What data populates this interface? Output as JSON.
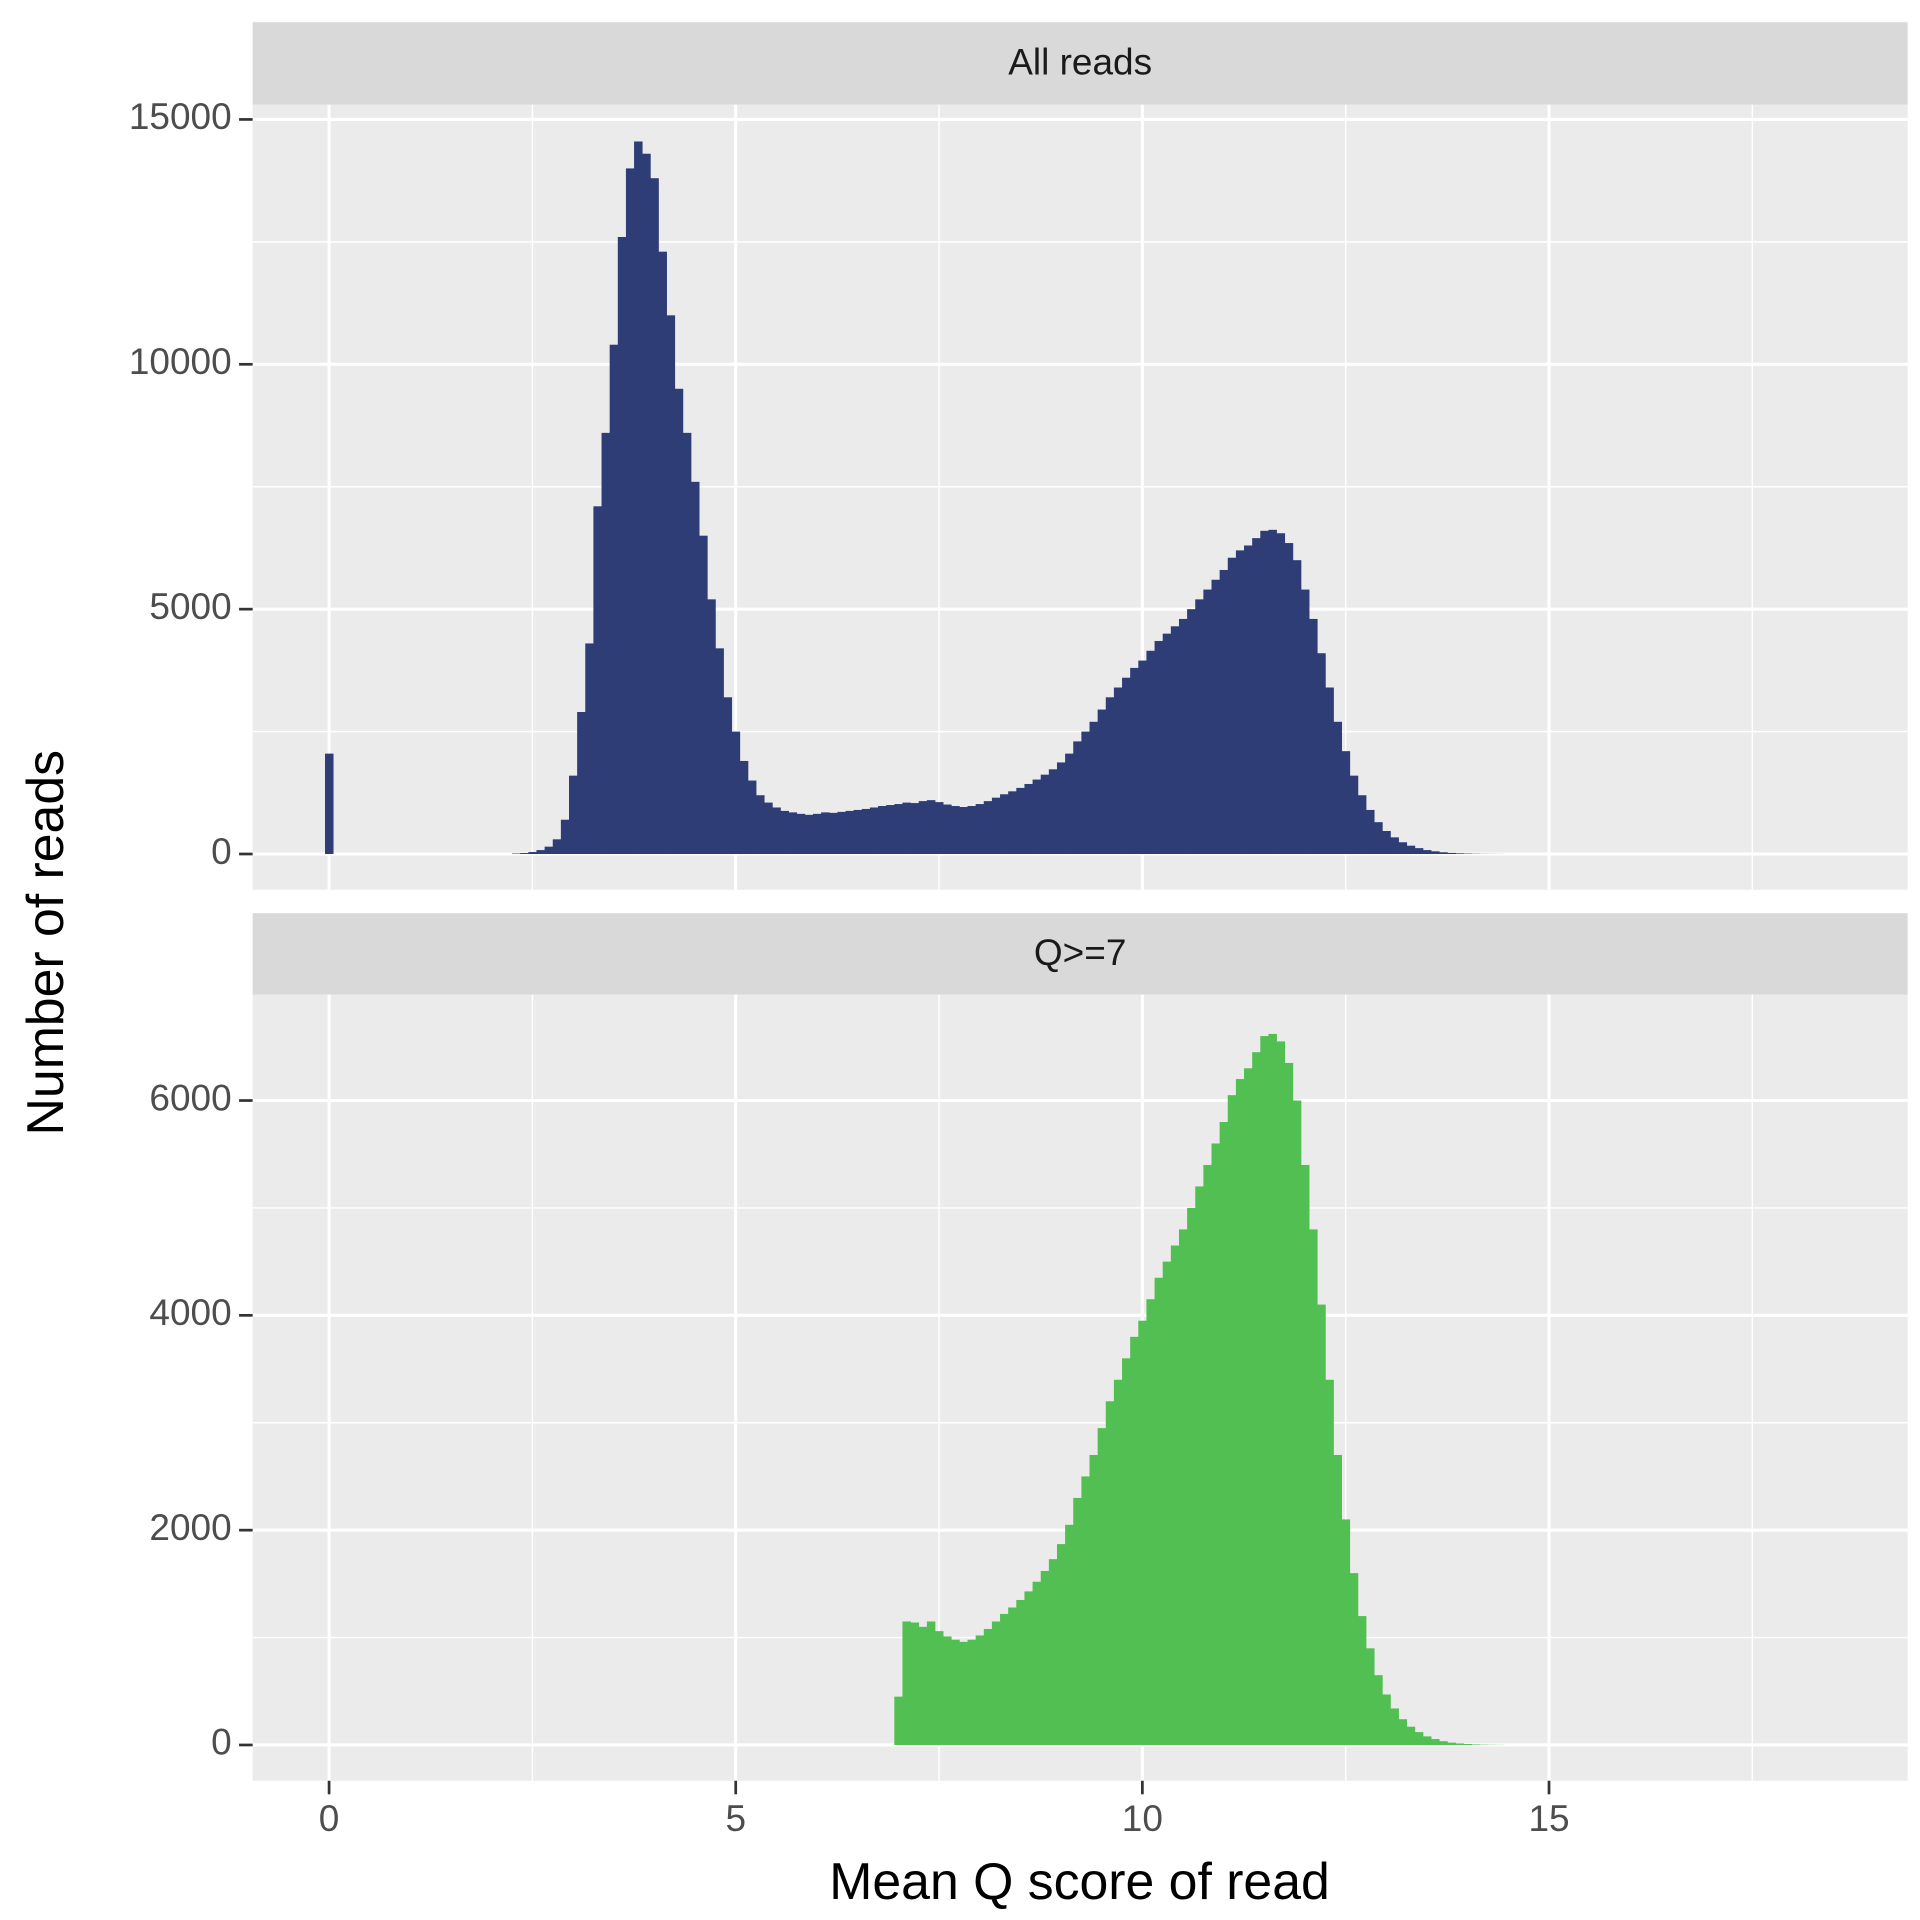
{
  "x_axis_label": "Mean Q score of read",
  "y_axis_label": "Number of reads",
  "chart_data": [
    {
      "type": "histogram",
      "title": "All reads",
      "color": "#2e3d76",
      "grid": true,
      "xlim": [
        -0.94,
        19.41
      ],
      "xticks": [
        0,
        5,
        10,
        15
      ],
      "xminor": [
        2.5,
        7.5,
        12.5,
        17.5
      ],
      "ylim": [
        -730,
        15300
      ],
      "yticks": [
        0,
        5000,
        10000,
        15000
      ],
      "yminor": [
        2500,
        7500,
        12500
      ],
      "bins": [
        -0.05,
        0.05,
        0.15,
        0.25,
        0.35,
        0.45,
        0.55,
        0.65,
        0.75,
        0.85,
        0.95,
        1.05,
        1.15,
        1.25,
        1.35,
        1.45,
        1.55,
        1.65,
        1.75,
        1.85,
        1.95,
        2.05,
        2.15,
        2.25,
        2.35,
        2.45,
        2.55,
        2.65,
        2.75,
        2.85,
        2.95,
        3.05,
        3.15,
        3.25,
        3.35,
        3.45,
        3.55,
        3.65,
        3.75,
        3.85,
        3.95,
        4.05,
        4.15,
        4.25,
        4.35,
        4.45,
        4.55,
        4.65,
        4.75,
        4.85,
        4.95,
        5.05,
        5.15,
        5.25,
        5.35,
        5.45,
        5.55,
        5.65,
        5.75,
        5.85,
        5.95,
        6.05,
        6.15,
        6.25,
        6.35,
        6.45,
        6.55,
        6.65,
        6.75,
        6.85,
        6.95,
        7.05,
        7.15,
        7.25,
        7.35,
        7.45,
        7.55,
        7.65,
        7.75,
        7.85,
        7.95,
        8.05,
        8.15,
        8.25,
        8.35,
        8.45,
        8.55,
        8.65,
        8.75,
        8.85,
        8.95,
        9.05,
        9.15,
        9.25,
        9.35,
        9.45,
        9.55,
        9.65,
        9.75,
        9.85,
        9.95,
        10.05,
        10.15,
        10.25,
        10.35,
        10.45,
        10.55,
        10.65,
        10.75,
        10.85,
        10.95,
        11.05,
        11.15,
        11.25,
        11.35,
        11.45,
        11.55,
        11.65,
        11.75,
        11.85,
        11.95,
        12.05,
        12.15,
        12.25,
        12.35,
        12.45,
        12.55,
        12.65,
        12.75,
        12.85,
        12.95,
        13.05,
        13.15,
        13.25,
        13.35,
        13.45,
        13.55,
        13.65,
        13.75,
        13.85,
        13.95,
        14.05,
        14.15,
        14.25,
        14.35,
        14.45
      ],
      "values": [
        2050,
        0,
        0,
        0,
        0,
        0,
        0,
        0,
        0,
        0,
        0,
        0,
        0,
        0,
        0,
        0,
        0,
        0,
        0,
        0,
        0,
        0,
        0,
        10,
        20,
        40,
        80,
        150,
        300,
        700,
        1600,
        2900,
        4300,
        7100,
        8600,
        10400,
        12600,
        14000,
        14550,
        14300,
        13800,
        12300,
        11000,
        9500,
        8600,
        7600,
        6500,
        5200,
        4200,
        3200,
        2500,
        1900,
        1500,
        1200,
        1050,
        950,
        880,
        850,
        820,
        800,
        820,
        850,
        840,
        860,
        880,
        900,
        920,
        950,
        980,
        1000,
        1020,
        1050,
        1040,
        1080,
        1100,
        1060,
        1010,
        980,
        960,
        980,
        1020,
        1080,
        1150,
        1220,
        1280,
        1350,
        1430,
        1520,
        1620,
        1730,
        1870,
        2050,
        2300,
        2500,
        2700,
        2950,
        3200,
        3400,
        3600,
        3800,
        3950,
        4150,
        4350,
        4500,
        4650,
        4800,
        5000,
        5200,
        5400,
        5600,
        5800,
        6050,
        6200,
        6300,
        6450,
        6600,
        6620,
        6550,
        6350,
        6000,
        5400,
        4800,
        4100,
        3400,
        2700,
        2100,
        1600,
        1200,
        900,
        650,
        470,
        340,
        240,
        170,
        120,
        80,
        55,
        35,
        22,
        14,
        9,
        5,
        3,
        2,
        1
      ]
    },
    {
      "type": "histogram",
      "title": "Q>=7",
      "color": "#52bf52",
      "grid": true,
      "xlim": [
        -0.94,
        19.41
      ],
      "xticks": [
        0,
        5,
        10,
        15
      ],
      "xminor": [
        2.5,
        7.5,
        12.5,
        17.5
      ],
      "ylim": [
        -333,
        6987
      ],
      "yticks": [
        0,
        2000,
        4000,
        6000
      ],
      "yminor": [
        1000,
        3000,
        5000
      ],
      "bins": [
        -0.05,
        0.05,
        0.15,
        0.25,
        0.35,
        0.45,
        0.55,
        0.65,
        0.75,
        0.85,
        0.95,
        1.05,
        1.15,
        1.25,
        1.35,
        1.45,
        1.55,
        1.65,
        1.75,
        1.85,
        1.95,
        2.05,
        2.15,
        2.25,
        2.35,
        2.45,
        2.55,
        2.65,
        2.75,
        2.85,
        2.95,
        3.05,
        3.15,
        3.25,
        3.35,
        3.45,
        3.55,
        3.65,
        3.75,
        3.85,
        3.95,
        4.05,
        4.15,
        4.25,
        4.35,
        4.45,
        4.55,
        4.65,
        4.75,
        4.85,
        4.95,
        5.05,
        5.15,
        5.25,
        5.35,
        5.45,
        5.55,
        5.65,
        5.75,
        5.85,
        5.95,
        6.05,
        6.15,
        6.25,
        6.35,
        6.45,
        6.55,
        6.65,
        6.75,
        6.85,
        6.95,
        7.05,
        7.15,
        7.25,
        7.35,
        7.45,
        7.55,
        7.65,
        7.75,
        7.85,
        7.95,
        8.05,
        8.15,
        8.25,
        8.35,
        8.45,
        8.55,
        8.65,
        8.75,
        8.85,
        8.95,
        9.05,
        9.15,
        9.25,
        9.35,
        9.45,
        9.55,
        9.65,
        9.75,
        9.85,
        9.95,
        10.05,
        10.15,
        10.25,
        10.35,
        10.45,
        10.55,
        10.65,
        10.75,
        10.85,
        10.95,
        11.05,
        11.15,
        11.25,
        11.35,
        11.45,
        11.55,
        11.65,
        11.75,
        11.85,
        11.95,
        12.05,
        12.15,
        12.25,
        12.35,
        12.45,
        12.55,
        12.65,
        12.75,
        12.85,
        12.95,
        13.05,
        13.15,
        13.25,
        13.35,
        13.45,
        13.55,
        13.65,
        13.75,
        13.85,
        13.95,
        14.05,
        14.15,
        14.25,
        14.35,
        14.45
      ],
      "values": [
        0,
        0,
        0,
        0,
        0,
        0,
        0,
        0,
        0,
        0,
        0,
        0,
        0,
        0,
        0,
        0,
        0,
        0,
        0,
        0,
        0,
        0,
        0,
        0,
        0,
        0,
        0,
        0,
        0,
        0,
        0,
        0,
        0,
        0,
        0,
        0,
        0,
        0,
        0,
        0,
        0,
        0,
        0,
        0,
        0,
        0,
        0,
        0,
        0,
        0,
        0,
        0,
        0,
        0,
        0,
        0,
        0,
        0,
        0,
        0,
        0,
        0,
        0,
        0,
        0,
        0,
        0,
        0,
        0,
        0,
        450,
        1150,
        1140,
        1100,
        1150,
        1060,
        1010,
        980,
        960,
        980,
        1020,
        1080,
        1150,
        1220,
        1280,
        1350,
        1430,
        1520,
        1620,
        1730,
        1870,
        2050,
        2300,
        2500,
        2700,
        2950,
        3200,
        3400,
        3600,
        3800,
        3950,
        4150,
        4350,
        4500,
        4650,
        4800,
        5000,
        5200,
        5400,
        5600,
        5800,
        6050,
        6200,
        6300,
        6450,
        6600,
        6620,
        6550,
        6350,
        6000,
        5400,
        4800,
        4100,
        3400,
        2700,
        2100,
        1600,
        1200,
        900,
        650,
        470,
        340,
        240,
        170,
        120,
        80,
        55,
        35,
        22,
        14,
        9,
        5,
        3,
        2,
        1
      ]
    }
  ]
}
